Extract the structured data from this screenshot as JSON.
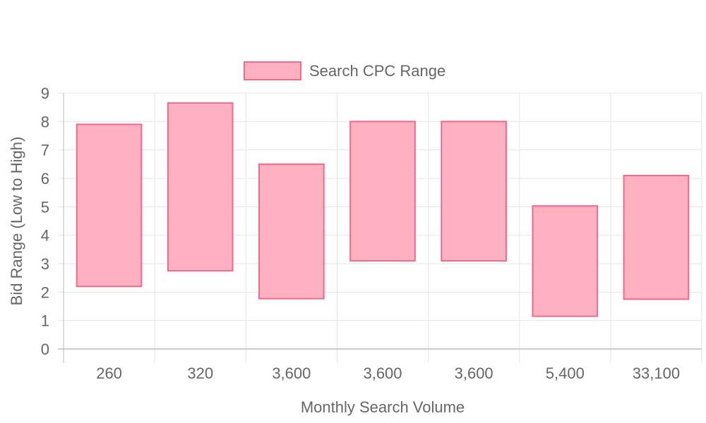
{
  "chart_data": {
    "type": "bar",
    "subtype": "floating-range",
    "categories": [
      "260",
      "320",
      "3,600",
      "3,600",
      "3,600",
      "5,400",
      "33,100"
    ],
    "series": [
      {
        "name": "Search CPC Range",
        "ranges": [
          [
            2.2,
            7.9
          ],
          [
            2.75,
            8.65
          ],
          [
            1.77,
            6.5
          ],
          [
            3.1,
            8.0
          ],
          [
            3.1,
            8.0
          ],
          [
            1.15,
            5.03
          ],
          [
            1.75,
            6.1
          ]
        ]
      }
    ],
    "xlabel": "Monthly Search Volume",
    "ylabel": "Bid Range (Low to High)",
    "ylim": [
      0,
      9
    ],
    "yticks": [
      "0",
      "1",
      "2",
      "3",
      "4",
      "5",
      "6",
      "7",
      "8",
      "9"
    ],
    "grid": true,
    "legend_position": "top",
    "colors": {
      "bar_fill": "#FFB1C1",
      "bar_stroke": "#F06B8A",
      "grid": "#E5E5E5",
      "axis": "#BBBBBB",
      "text": "#666666"
    }
  }
}
